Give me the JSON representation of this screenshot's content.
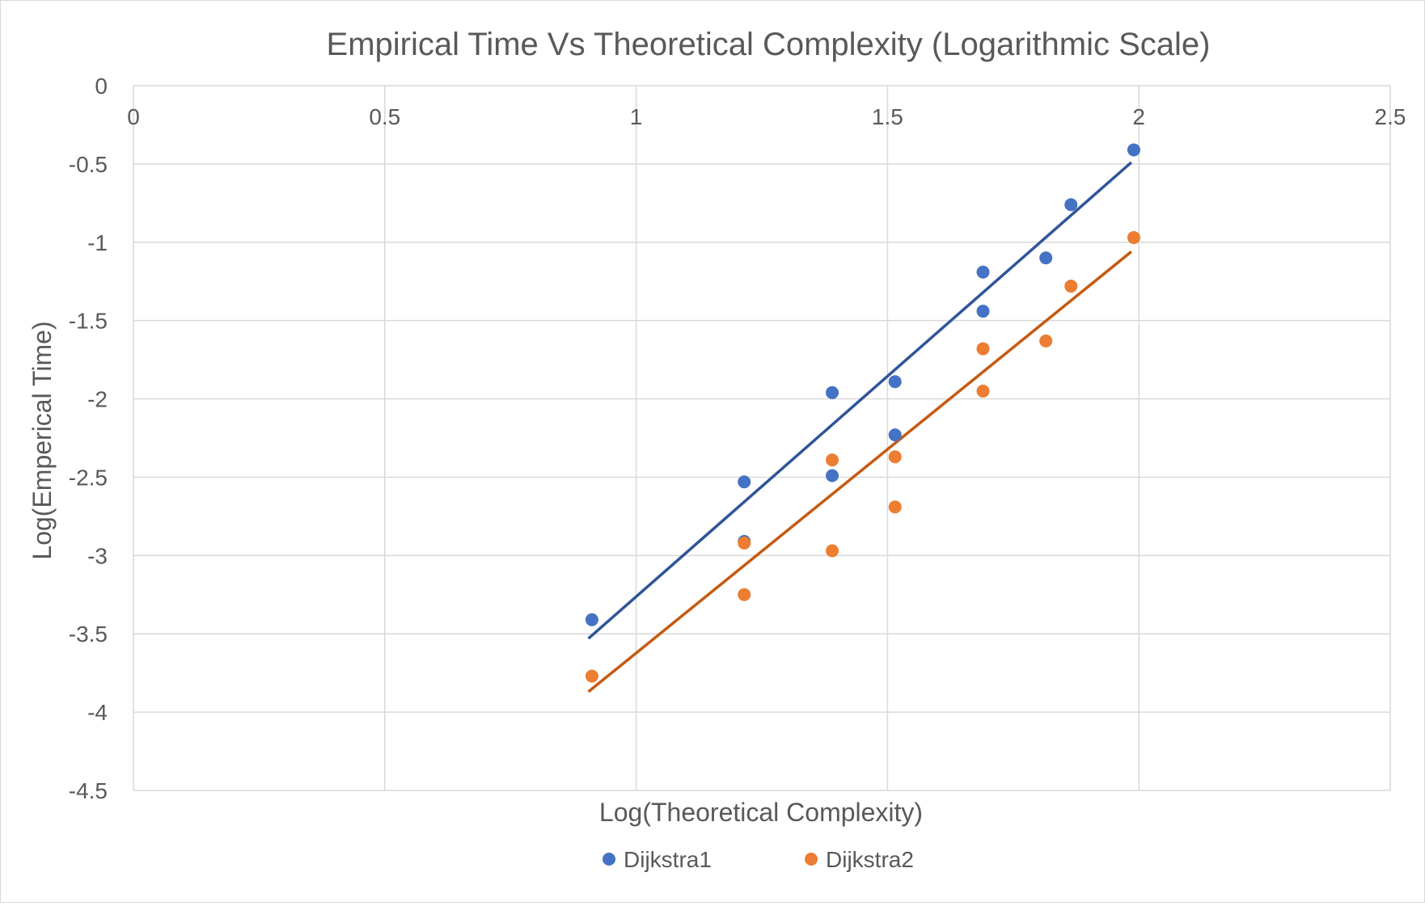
{
  "chart_data": {
    "type": "scatter",
    "title": "Empirical Time Vs Theoretical Complexity (Logarithmic Scale)",
    "xlabel": "Log(Theoretical Complexity)",
    "ylabel": "Log(Emperical Time)",
    "xlim": [
      0,
      2.5
    ],
    "ylim": [
      -4.5,
      0
    ],
    "x_ticks": [
      "0",
      "0.5",
      "1",
      "1.5",
      "2",
      "2.5"
    ],
    "y_ticks": [
      "0",
      "-0.5",
      "-1",
      "-1.5",
      "-2",
      "-2.5",
      "-3",
      "-3.5",
      "-4",
      "-4.5"
    ],
    "x_tick_values": [
      0,
      0.5,
      1,
      1.5,
      2,
      2.5
    ],
    "y_tick_values": [
      0,
      -0.5,
      -1,
      -1.5,
      -2,
      -2.5,
      -3,
      -3.5,
      -4,
      -4.5
    ],
    "x_axis_position": "top",
    "grid": true,
    "legend": "bottom",
    "series": [
      {
        "name": "Dijkstra1",
        "color": "#4472C4",
        "trendline_color": "#2F5597",
        "points": [
          [
            0.912,
            -3.41
          ],
          [
            1.215,
            -2.53
          ],
          [
            1.215,
            -2.91
          ],
          [
            1.39,
            -1.96
          ],
          [
            1.39,
            -2.49
          ],
          [
            1.515,
            -1.89
          ],
          [
            1.515,
            -2.23
          ],
          [
            1.69,
            -1.19
          ],
          [
            1.69,
            -1.44
          ],
          [
            1.815,
            -1.1
          ],
          [
            1.865,
            -0.76
          ],
          [
            1.99,
            -0.41
          ]
        ],
        "trendline": [
          [
            0.905,
            -3.53
          ],
          [
            1.985,
            -0.49
          ]
        ]
      },
      {
        "name": "Dijkstra2",
        "color": "#ED7D31",
        "trendline_color": "#C55A11",
        "points": [
          [
            0.912,
            -3.77
          ],
          [
            1.215,
            -2.92
          ],
          [
            1.215,
            -3.25
          ],
          [
            1.39,
            -2.39
          ],
          [
            1.39,
            -2.97
          ],
          [
            1.515,
            -2.37
          ],
          [
            1.515,
            -2.69
          ],
          [
            1.69,
            -1.68
          ],
          [
            1.69,
            -1.95
          ],
          [
            1.815,
            -1.63
          ],
          [
            1.865,
            -1.28
          ],
          [
            1.99,
            -0.97
          ]
        ],
        "trendline": [
          [
            0.905,
            -3.87
          ],
          [
            1.985,
            -1.06
          ]
        ]
      }
    ]
  }
}
